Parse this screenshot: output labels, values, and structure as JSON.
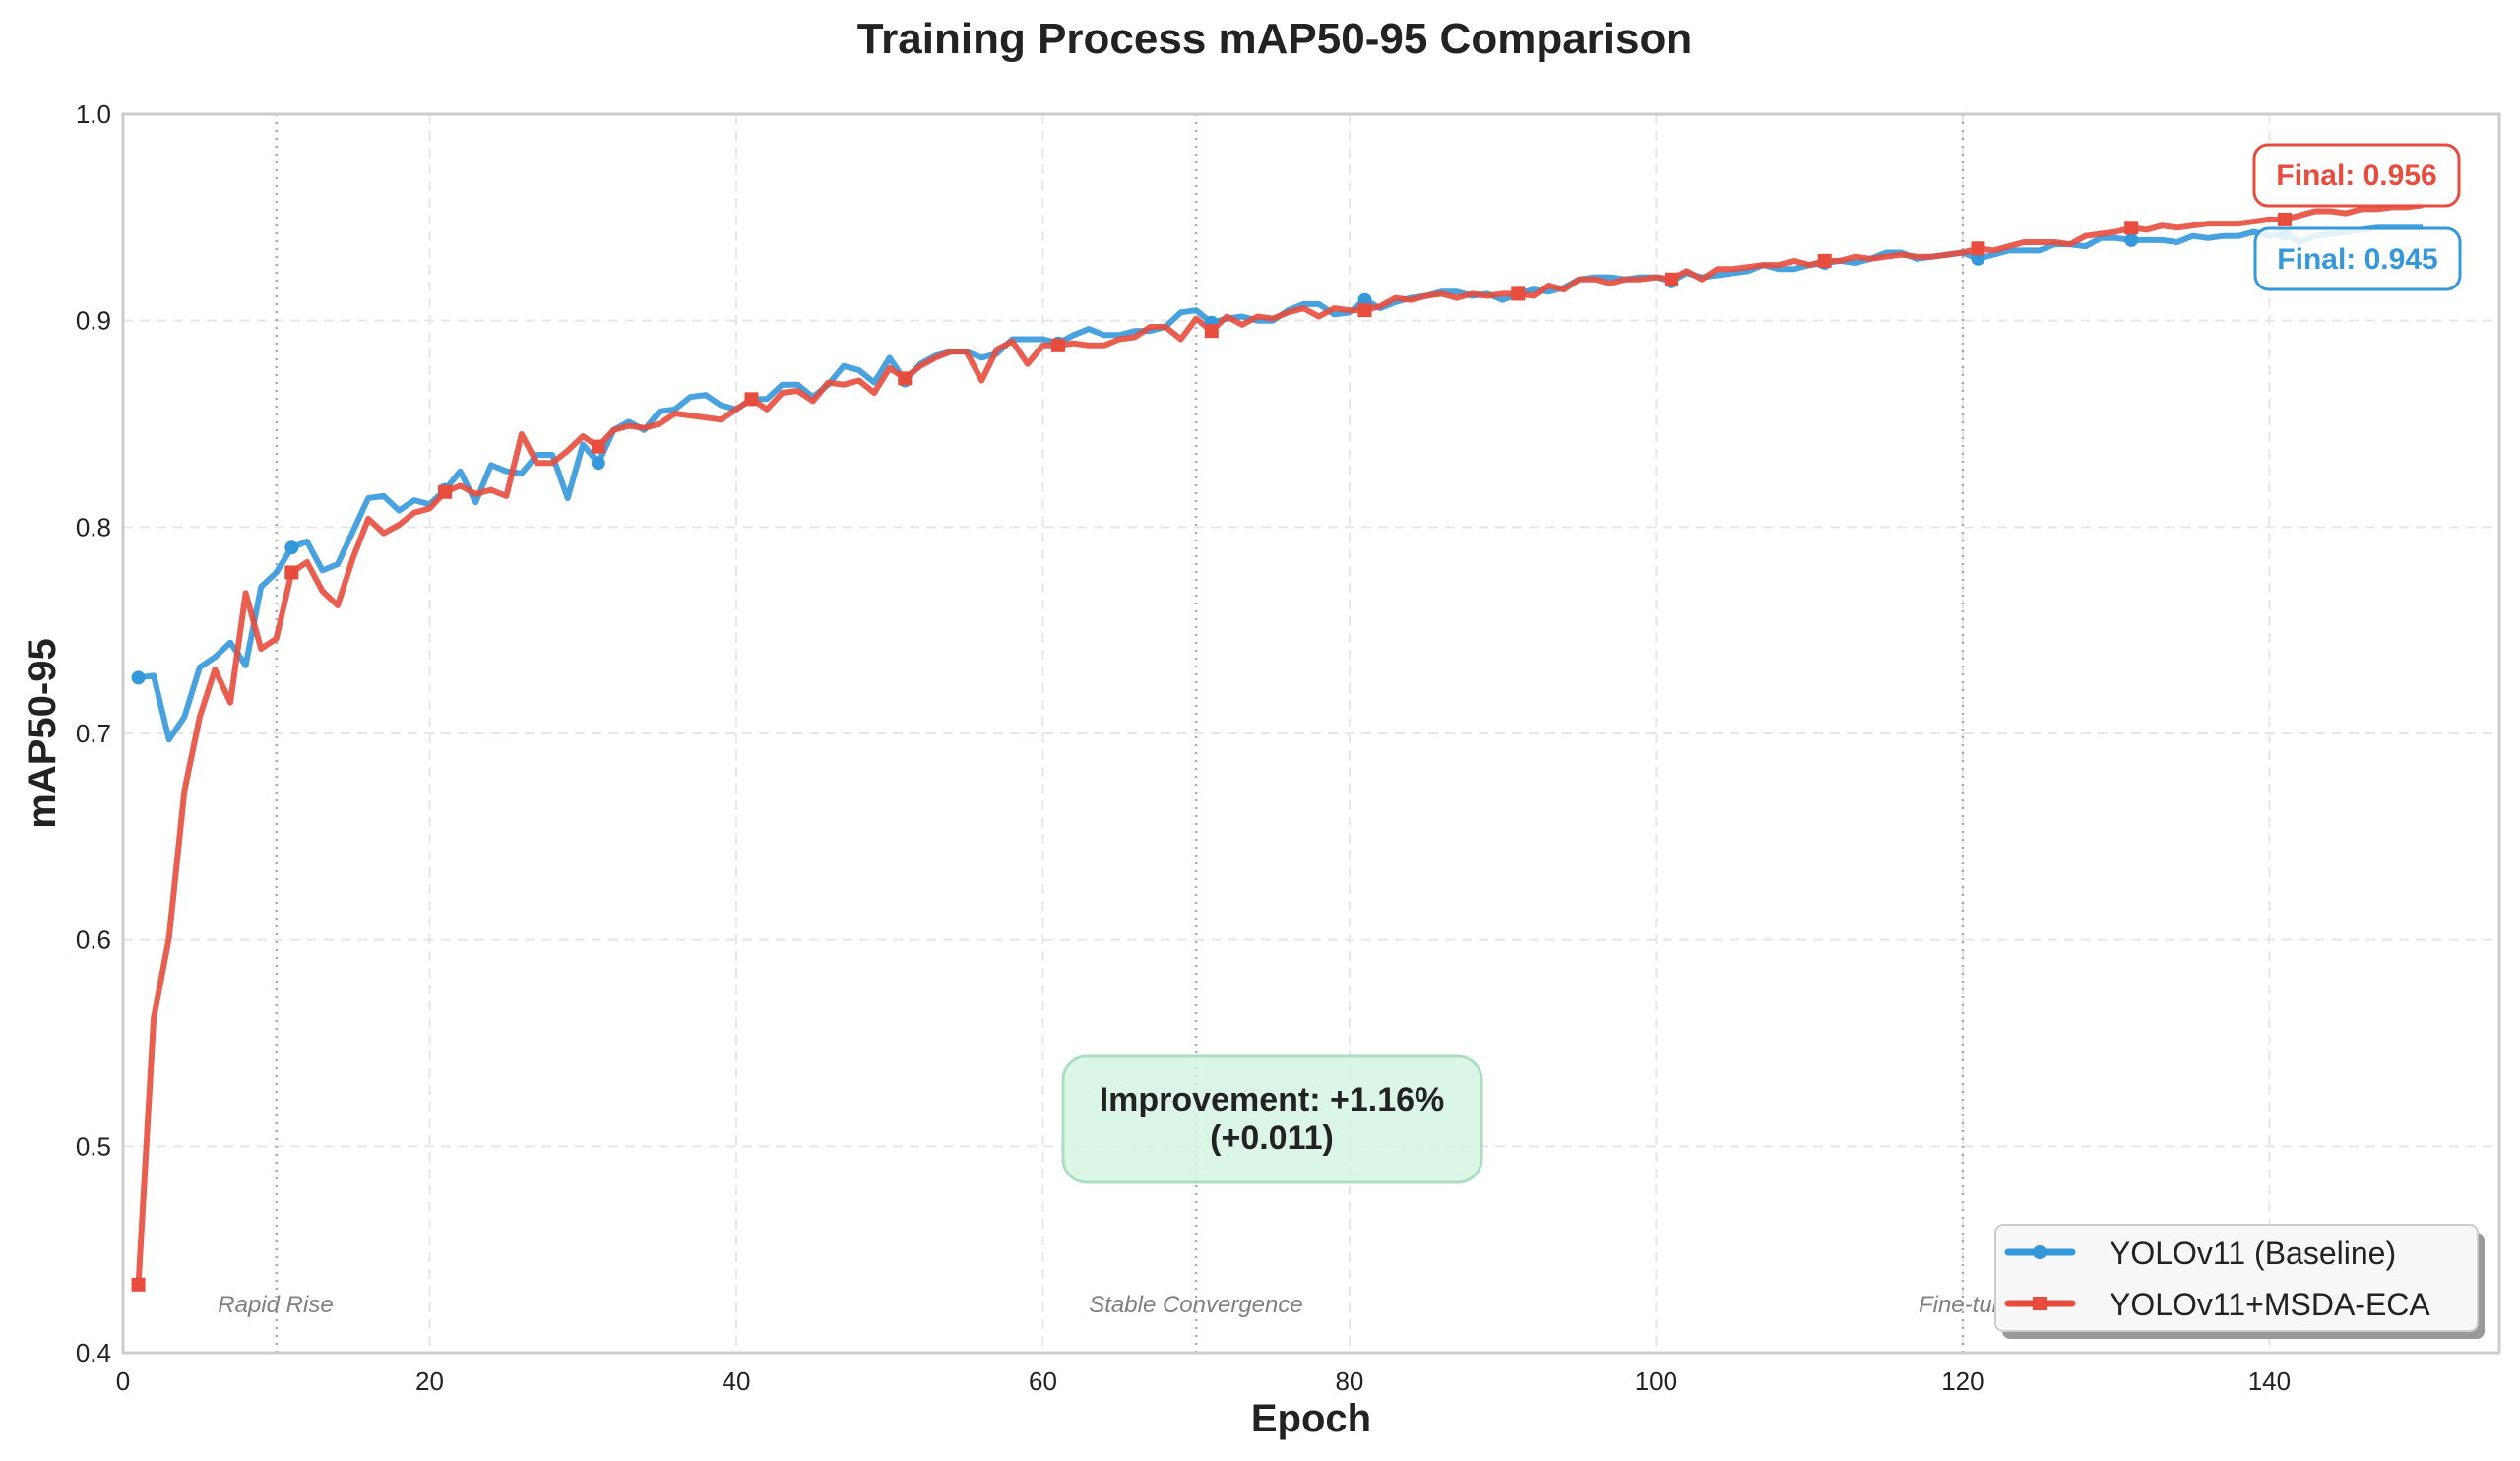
{
  "chart_data": {
    "type": "line",
    "title": "Training Process mAP50-95 Comparison",
    "xlabel": "Epoch",
    "ylabel": "mAP50-95",
    "xlim": [
      0,
      155
    ],
    "ylim": [
      0.4,
      1.0
    ],
    "xticks": [
      "0",
      "20",
      "40",
      "60",
      "80",
      "100",
      "120",
      "140"
    ],
    "xtick_values": [
      0,
      20,
      40,
      60,
      80,
      100,
      120,
      140
    ],
    "yticks": [
      "0.4",
      "0.5",
      "0.6",
      "0.7",
      "0.8",
      "0.9",
      "1.0"
    ],
    "ytick_values": [
      0.4,
      0.5,
      0.6,
      0.7,
      0.8,
      0.9,
      1.0
    ],
    "grid": true,
    "legend_position": "bottom-right",
    "marker_every": 10,
    "series": [
      {
        "name": "YOLOv11 (Baseline)",
        "color": "#3498db",
        "marker": "circle",
        "values": [
          0.727,
          0.728,
          0.697,
          0.708,
          0.732,
          0.737,
          0.744,
          0.733,
          0.771,
          0.778,
          0.79,
          0.793,
          0.779,
          0.782,
          0.798,
          0.814,
          0.815,
          0.808,
          0.813,
          0.811,
          0.818,
          0.827,
          0.812,
          0.83,
          0.827,
          0.826,
          0.835,
          0.835,
          0.814,
          0.84,
          0.831,
          0.847,
          0.851,
          0.847,
          0.856,
          0.857,
          0.863,
          0.864,
          0.859,
          0.857,
          0.862,
          0.862,
          0.869,
          0.869,
          0.863,
          0.869,
          0.878,
          0.876,
          0.87,
          0.882,
          0.871,
          0.879,
          0.883,
          0.885,
          0.885,
          0.882,
          0.884,
          0.891,
          0.891,
          0.891,
          0.889,
          0.893,
          0.896,
          0.893,
          0.893,
          0.895,
          0.895,
          0.897,
          0.904,
          0.905,
          0.899,
          0.901,
          0.902,
          0.9,
          0.9,
          0.905,
          0.908,
          0.908,
          0.903,
          0.904,
          0.91,
          0.906,
          0.909,
          0.911,
          0.912,
          0.914,
          0.914,
          0.912,
          0.913,
          0.91,
          0.913,
          0.915,
          0.914,
          0.916,
          0.92,
          0.921,
          0.921,
          0.92,
          0.921,
          0.921,
          0.919,
          0.923,
          0.921,
          0.922,
          0.923,
          0.924,
          0.927,
          0.925,
          0.925,
          0.927,
          0.928,
          0.929,
          0.928,
          0.93,
          0.933,
          0.933,
          0.93,
          0.931,
          0.932,
          0.933,
          0.93,
          0.932,
          0.934,
          0.934,
          0.934,
          0.937,
          0.937,
          0.936,
          0.94,
          0.94,
          0.939,
          0.939,
          0.939,
          0.938,
          0.941,
          0.94,
          0.941,
          0.941,
          0.943,
          0.941,
          0.942,
          0.938,
          0.941,
          0.942,
          0.943,
          0.944,
          0.945,
          0.945,
          0.945,
          0.945
        ]
      },
      {
        "name": "YOLOv11+MSDA-ECA",
        "color": "#e74c3c",
        "marker": "square",
        "values": [
          0.433,
          0.562,
          0.601,
          0.672,
          0.708,
          0.731,
          0.715,
          0.768,
          0.741,
          0.746,
          0.778,
          0.783,
          0.769,
          0.762,
          0.785,
          0.804,
          0.797,
          0.801,
          0.807,
          0.809,
          0.817,
          0.82,
          0.816,
          0.818,
          0.815,
          0.845,
          0.831,
          0.831,
          0.837,
          0.844,
          0.839,
          0.847,
          0.849,
          0.848,
          0.85,
          0.855,
          0.854,
          0.853,
          0.852,
          0.857,
          0.862,
          0.857,
          0.865,
          0.866,
          0.861,
          0.87,
          0.869,
          0.871,
          0.865,
          0.877,
          0.872,
          0.878,
          0.882,
          0.885,
          0.885,
          0.871,
          0.886,
          0.89,
          0.879,
          0.888,
          0.888,
          0.889,
          0.888,
          0.888,
          0.891,
          0.892,
          0.897,
          0.897,
          0.891,
          0.901,
          0.895,
          0.902,
          0.898,
          0.902,
          0.901,
          0.904,
          0.906,
          0.902,
          0.906,
          0.905,
          0.905,
          0.907,
          0.911,
          0.91,
          0.912,
          0.913,
          0.911,
          0.913,
          0.912,
          0.913,
          0.913,
          0.912,
          0.917,
          0.915,
          0.92,
          0.92,
          0.918,
          0.92,
          0.92,
          0.921,
          0.92,
          0.924,
          0.92,
          0.925,
          0.925,
          0.926,
          0.927,
          0.927,
          0.929,
          0.927,
          0.929,
          0.929,
          0.931,
          0.93,
          0.931,
          0.932,
          0.931,
          0.931,
          0.932,
          0.933,
          0.935,
          0.934,
          0.936,
          0.938,
          0.938,
          0.938,
          0.937,
          0.941,
          0.942,
          0.943,
          0.945,
          0.944,
          0.946,
          0.945,
          0.946,
          0.947,
          0.947,
          0.947,
          0.948,
          0.949,
          0.949,
          0.951,
          0.953,
          0.953,
          0.952,
          0.954,
          0.954,
          0.955,
          0.955,
          0.956
        ]
      }
    ],
    "phases": [
      {
        "label": "Rapid Rise",
        "epoch": 10
      },
      {
        "label": "Stable Convergence",
        "epoch": 70
      },
      {
        "label": "Fine-tun",
        "epoch": 120
      }
    ],
    "annotations": {
      "final_proposed": "Final: 0.956",
      "final_baseline": "Final: 0.945",
      "improvement_line1": "Improvement: +1.16%",
      "improvement_line2": "(+0.011)",
      "improvement_color": "#d5f5e3",
      "improvement_border": "#a9dfbf"
    }
  }
}
